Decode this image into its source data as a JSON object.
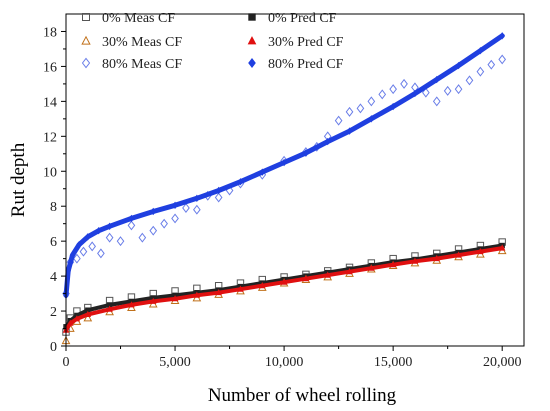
{
  "chart_data": {
    "type": "scatter",
    "title": "",
    "xlabel": "Number of wheel rolling",
    "ylabel": "Rut depth",
    "xlim": [
      0,
      21000
    ],
    "ylim": [
      0,
      19
    ],
    "x_ticks": [
      0,
      5000,
      10000,
      15000,
      20000
    ],
    "x_tick_labels": [
      "0",
      "5,000",
      "10,000",
      "15,000",
      "20,000"
    ],
    "y_ticks": [
      0,
      2,
      4,
      6,
      8,
      10,
      12,
      14,
      16,
      18
    ],
    "y_tick_labels": [
      "0",
      "2",
      "4",
      "6",
      "8",
      "10",
      "12",
      "14",
      "16",
      "18"
    ],
    "grid": false,
    "legend_position": "top-left",
    "series": [
      {
        "name": "0% Meas CF",
        "marker": "open-square",
        "color": "#555555",
        "x": [
          0,
          200,
          500,
          1000,
          2000,
          3000,
          4000,
          5000,
          6000,
          7000,
          8000,
          9000,
          10000,
          11000,
          12000,
          13000,
          14000,
          15000,
          16000,
          17000,
          18000,
          19000,
          20000
        ],
        "y": [
          0.8,
          1.6,
          2.0,
          2.2,
          2.6,
          2.8,
          3.0,
          3.15,
          3.3,
          3.45,
          3.6,
          3.8,
          3.95,
          4.1,
          4.3,
          4.5,
          4.75,
          5.0,
          5.15,
          5.3,
          5.55,
          5.75,
          5.95
        ]
      },
      {
        "name": "0% Pred CF",
        "marker": "filled-square",
        "color": "#222222",
        "x": [
          0,
          200,
          500,
          1000,
          2000,
          3000,
          4000,
          5000,
          6000,
          7000,
          8000,
          9000,
          10000,
          11000,
          12000,
          13000,
          14000,
          15000,
          16000,
          17000,
          18000,
          19000,
          20000
        ],
        "y": [
          1.1,
          1.45,
          1.75,
          2.05,
          2.35,
          2.55,
          2.75,
          2.9,
          3.05,
          3.2,
          3.4,
          3.6,
          3.8,
          4.0,
          4.2,
          4.4,
          4.6,
          4.8,
          4.95,
          5.15,
          5.35,
          5.55,
          5.75
        ]
      },
      {
        "name": "30% Meas CF",
        "marker": "open-triangle",
        "color": "#c0701a",
        "x": [
          0,
          200,
          500,
          1000,
          2000,
          3000,
          4000,
          5000,
          6000,
          7000,
          8000,
          9000,
          10000,
          11000,
          12000,
          13000,
          14000,
          15000,
          16000,
          17000,
          18000,
          19000,
          20000
        ],
        "y": [
          0.3,
          1.0,
          1.4,
          1.6,
          1.95,
          2.2,
          2.4,
          2.6,
          2.75,
          2.95,
          3.15,
          3.35,
          3.6,
          3.8,
          3.95,
          4.15,
          4.4,
          4.6,
          4.75,
          4.9,
          5.1,
          5.25,
          5.45
        ]
      },
      {
        "name": "30% Pred CF",
        "marker": "filled-triangle",
        "color": "#e01010",
        "x": [
          0,
          200,
          500,
          1000,
          2000,
          3000,
          4000,
          5000,
          6000,
          7000,
          8000,
          9000,
          10000,
          11000,
          12000,
          13000,
          14000,
          15000,
          16000,
          17000,
          18000,
          19000,
          20000
        ],
        "y": [
          0.9,
          1.3,
          1.55,
          1.8,
          2.1,
          2.35,
          2.55,
          2.7,
          2.9,
          3.05,
          3.25,
          3.45,
          3.65,
          3.85,
          4.05,
          4.25,
          4.45,
          4.65,
          4.85,
          5.0,
          5.2,
          5.4,
          5.6
        ]
      },
      {
        "name": "80% Meas CF",
        "marker": "open-diamond",
        "color": "#6a7ee8",
        "x": [
          0,
          200,
          500,
          800,
          1200,
          1600,
          2000,
          2500,
          3000,
          3500,
          4000,
          4500,
          5000,
          5500,
          6000,
          6500,
          7000,
          7500,
          8000,
          9000,
          10000,
          11000,
          11500,
          12000,
          12500,
          13000,
          13500,
          14000,
          14500,
          15000,
          15500,
          16000,
          16500,
          17000,
          17500,
          18000,
          18500,
          19000,
          19500,
          20000
        ],
        "y": [
          3.0,
          4.8,
          5.0,
          5.4,
          5.7,
          5.3,
          6.2,
          6.0,
          6.9,
          6.2,
          6.6,
          7.0,
          7.3,
          7.9,
          7.8,
          8.6,
          8.5,
          8.9,
          9.3,
          9.8,
          10.6,
          11.1,
          11.4,
          12.0,
          12.9,
          13.4,
          13.6,
          14.0,
          14.4,
          14.7,
          15.0,
          14.8,
          14.5,
          14.0,
          14.6,
          14.7,
          15.2,
          15.7,
          16.1,
          16.4
        ]
      },
      {
        "name": "80% Pred CF",
        "marker": "filled-diamond",
        "color": "#1f3fe0",
        "x": [
          0,
          100,
          300,
          600,
          1000,
          1500,
          2000,
          3000,
          4000,
          5000,
          6000,
          7000,
          8000,
          9000,
          10000,
          11000,
          12000,
          13000,
          14000,
          15000,
          16000,
          17000,
          18000,
          19000,
          20000
        ],
        "y": [
          2.9,
          4.3,
          5.2,
          5.8,
          6.25,
          6.6,
          6.85,
          7.3,
          7.7,
          8.05,
          8.45,
          8.9,
          9.4,
          9.95,
          10.5,
          11.05,
          11.7,
          12.3,
          13.0,
          13.7,
          14.45,
          15.25,
          16.05,
          16.9,
          17.75
        ]
      }
    ]
  }
}
